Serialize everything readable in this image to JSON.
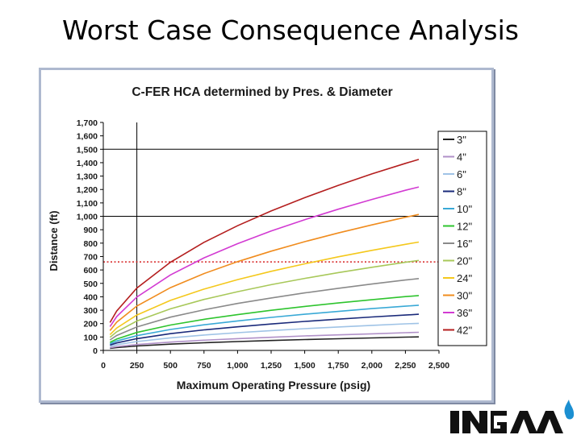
{
  "slide": {
    "title": "Worst Case Consequence Analysis"
  },
  "logo": {
    "name": "INGAA",
    "colors": {
      "text": "#111111",
      "flame": "#1b8fd1"
    }
  },
  "colors": {
    "frame_border": "#aeb9cf",
    "reference_line": "#d62020"
  },
  "chart_data": {
    "type": "line",
    "title": "C-FER HCA determined by Pres. & Diameter",
    "xlabel": "Maximum Operating Pressure (psig)",
    "ylabel": "Distance (ft)",
    "xlim": [
      0,
      2500
    ],
    "ylim": [
      0,
      1700
    ],
    "x_ticks": [
      0,
      250,
      500,
      750,
      1000,
      1250,
      1500,
      1750,
      2000,
      2250,
      2500
    ],
    "x_tick_labels": [
      "0",
      "250",
      "500",
      "750",
      "1,000",
      "1,250",
      "1,500",
      "1,750",
      "2,000",
      "2,250",
      "2,500"
    ],
    "y_ticks": [
      0,
      100,
      200,
      300,
      400,
      500,
      600,
      700,
      800,
      900,
      1000,
      1100,
      1200,
      1300,
      1400,
      1500,
      1600,
      1700
    ],
    "y_tick_labels": [
      "0",
      "100",
      "200",
      "300",
      "400",
      "500",
      "600",
      "700",
      "800",
      "900",
      "1,000",
      "1,100",
      "1,200",
      "1,300",
      "1,400",
      "1,500",
      "1,600",
      "1,700"
    ],
    "grid": {
      "horizontal": [
        1000,
        1500
      ],
      "vertical": [
        250
      ]
    },
    "reference_lines": [
      {
        "axis": "y",
        "value": 660,
        "style": "dotted"
      }
    ],
    "legend_position": "right",
    "x": [
      50,
      100,
      250,
      500,
      750,
      1000,
      1250,
      1500,
      1750,
      2000,
      2250,
      2350
    ],
    "series": [
      {
        "name": "3\"",
        "color": "#222222",
        "values": [
          15,
          21,
          33,
          47,
          57,
          66,
          74,
          81,
          87,
          93,
          99,
          101
        ]
      },
      {
        "name": "4\"",
        "color": "#b090c8",
        "values": [
          20,
          28,
          44,
          62,
          76,
          88,
          98,
          108,
          116,
          124,
          132,
          135
        ]
      },
      {
        "name": "6\"",
        "color": "#9fc3e6",
        "values": [
          30,
          42,
          66,
          94,
          115,
          132,
          148,
          162,
          175,
          187,
          198,
          202
        ]
      },
      {
        "name": "8\"",
        "color": "#1a2a7a",
        "values": [
          40,
          56,
          88,
          125,
          153,
          176,
          197,
          216,
          233,
          249,
          264,
          270
        ]
      },
      {
        "name": "10\"",
        "color": "#39a9d6",
        "values": [
          50,
          70,
          110,
          156,
          191,
          220,
          246,
          270,
          291,
          312,
          330,
          337
        ]
      },
      {
        "name": "12\"",
        "color": "#2ec42e",
        "values": [
          60,
          85,
          134,
          189,
          232,
          267,
          299,
          328,
          354,
          378,
          401,
          409
        ]
      },
      {
        "name": "16\"",
        "color": "#8a8a8a",
        "values": [
          78,
          111,
          175,
          248,
          303,
          350,
          391,
          429,
          463,
          495,
          525,
          536
        ]
      },
      {
        "name": "20\"",
        "color": "#a8c85a",
        "values": [
          98,
          139,
          219,
          310,
          380,
          438,
          490,
          537,
          580,
          620,
          657,
          671
        ]
      },
      {
        "name": "24\"",
        "color": "#f4c81c",
        "values": [
          118,
          167,
          264,
          373,
          457,
          528,
          590,
          646,
          698,
          746,
          791,
          808
        ]
      },
      {
        "name": "30\"",
        "color": "#f08c1e",
        "values": [
          148,
          210,
          331,
          468,
          573,
          662,
          740,
          811,
          876,
          936,
          993,
          1014
        ]
      },
      {
        "name": "36\"",
        "color": "#d23ad2",
        "values": [
          178,
          252,
          398,
          563,
          690,
          796,
          890,
          975,
          1053,
          1126,
          1194,
          1219
        ]
      },
      {
        "name": "42\"",
        "color": "#b41e1e",
        "values": [
          208,
          294,
          465,
          658,
          806,
          930,
          1040,
          1139,
          1231,
          1316,
          1395,
          1424
        ]
      }
    ]
  }
}
